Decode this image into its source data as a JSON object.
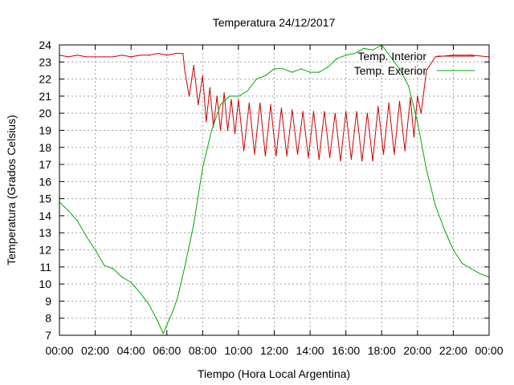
{
  "chart_data": {
    "type": "line",
    "title": "Temperatura 24/12/2017",
    "xlabel": "Tiempo (Hora Local Argentina)",
    "ylabel": "Temperatura (Grados Celsius)",
    "xlim": [
      0,
      24
    ],
    "ylim": [
      7,
      24
    ],
    "grid": true,
    "legend_position": "top-right",
    "x_tick_labels": [
      "00:00",
      "02:00",
      "04:00",
      "06:00",
      "08:00",
      "10:00",
      "12:00",
      "14:00",
      "16:00",
      "18:00",
      "20:00",
      "22:00",
      "00:00"
    ],
    "y_ticks": [
      7,
      8,
      9,
      10,
      11,
      12,
      13,
      14,
      15,
      16,
      17,
      18,
      19,
      20,
      21,
      22,
      23,
      24
    ],
    "series": [
      {
        "name": "Temp. Interior",
        "color": "#cc0000",
        "x": [
          0,
          0.5,
          1,
          1.5,
          2,
          2.5,
          3,
          3.5,
          4,
          4.5,
          5,
          5.5,
          6,
          6.5,
          6.9,
          7.0,
          7.25,
          7.5,
          7.75,
          8.0,
          8.2,
          8.4,
          8.6,
          8.8,
          9.0,
          9.2,
          9.4,
          9.6,
          9.8,
          10.0,
          10.3,
          10.6,
          10.9,
          11.2,
          11.5,
          11.8,
          12.1,
          12.4,
          12.7,
          13.0,
          13.3,
          13.6,
          13.9,
          14.2,
          14.5,
          14.8,
          15.1,
          15.4,
          15.7,
          16.0,
          16.3,
          16.6,
          16.9,
          17.2,
          17.5,
          17.8,
          18.1,
          18.4,
          18.7,
          19.0,
          19.3,
          19.6,
          19.8,
          20.0,
          20.2,
          20.5,
          21.0,
          22.0,
          23.0,
          24.0
        ],
        "y": [
          23.4,
          23.3,
          23.4,
          23.3,
          23.3,
          23.3,
          23.3,
          23.4,
          23.3,
          23.4,
          23.4,
          23.5,
          23.4,
          23.5,
          23.5,
          22.5,
          21.0,
          22.8,
          20.5,
          22.2,
          19.5,
          21.5,
          19.2,
          21.0,
          19.0,
          21.2,
          19.0,
          20.8,
          18.8,
          20.8,
          17.8,
          20.6,
          17.6,
          20.6,
          17.5,
          20.5,
          17.5,
          20.3,
          17.5,
          20.2,
          17.6,
          20.1,
          17.4,
          20.1,
          17.3,
          20.1,
          17.4,
          20.0,
          17.2,
          20.1,
          17.3,
          20.1,
          17.2,
          20.0,
          17.2,
          20.4,
          17.6,
          20.6,
          17.6,
          20.7,
          17.8,
          20.9,
          18.6,
          21.0,
          20.0,
          22.5,
          23.3,
          23.4,
          23.4,
          23.3
        ]
      },
      {
        "name": "Temp. Exterior",
        "color": "#00aa00",
        "x": [
          0,
          0.5,
          1,
          1.5,
          2,
          2.5,
          3,
          3.5,
          4,
          4.5,
          5,
          5.5,
          5.8,
          6.0,
          6.3,
          6.6,
          7.0,
          7.5,
          8.0,
          8.5,
          9.0,
          9.5,
          10.0,
          10.5,
          11.0,
          11.5,
          12.0,
          12.5,
          13.0,
          13.5,
          14.0,
          14.5,
          15.0,
          15.5,
          16.0,
          16.5,
          17.0,
          17.5,
          18.0,
          18.5,
          19.0,
          19.5,
          20.0,
          20.5,
          21.0,
          21.5,
          22.0,
          22.5,
          23.0,
          23.5,
          24.0
        ],
        "y": [
          14.8,
          14.3,
          13.7,
          12.8,
          12.0,
          11.1,
          10.9,
          10.4,
          10.1,
          9.5,
          8.8,
          7.8,
          7.1,
          7.6,
          8.3,
          9.2,
          11.0,
          13.5,
          16.8,
          19.0,
          20.5,
          21.0,
          21.0,
          21.3,
          22.0,
          22.2,
          22.6,
          22.6,
          22.4,
          22.6,
          22.4,
          22.4,
          22.7,
          23.2,
          23.4,
          23.5,
          23.8,
          23.7,
          24.0,
          23.3,
          22.6,
          21.6,
          19.5,
          16.7,
          14.6,
          13.2,
          12.0,
          11.2,
          10.9,
          10.6,
          10.4
        ]
      }
    ]
  }
}
